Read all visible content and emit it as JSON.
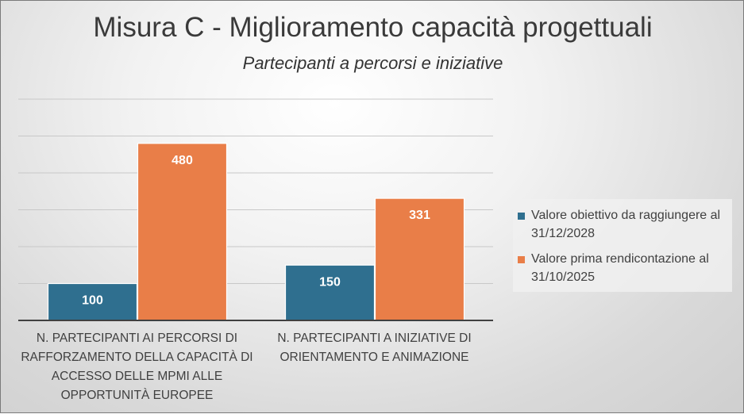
{
  "chart_data": {
    "type": "bar",
    "title": "Misura C - Miglioramento capacità progettuali",
    "subtitle": "Partecipanti a percorsi e iniziative",
    "categories": [
      [
        "N. PARTECIPANTI AI PERCORSI DI",
        "RAFFORZAMENTO DELLA CAPACITÀ DI",
        "ACCESSO DELLE MPMI ALLE",
        "OPPORTUNITÀ EUROPEE"
      ],
      [
        "N. PARTECIPANTI A INIZIATIVE DI",
        "ORIENTAMENTO E ANIMAZIONE"
      ]
    ],
    "series": [
      {
        "name": "Valore obiettivo da raggiungere al 31/12/2028",
        "legend_lines": [
          "Valore obiettivo da raggiungere al",
          "31/12/2028"
        ],
        "color": "#2f6f8f",
        "values": [
          100,
          150
        ]
      },
      {
        "name": "Valore prima rendicontazione al 31/10/2025",
        "legend_lines": [
          "Valore prima rendicontazione al",
          "31/10/2025"
        ],
        "color": "#e97e48",
        "values": [
          480,
          331
        ]
      }
    ],
    "ylim": [
      0,
      600
    ],
    "gridlines": [
      0,
      100,
      200,
      300,
      400,
      500,
      600
    ],
    "grid": true,
    "legend": "right",
    "xlabel": "",
    "ylabel": ""
  }
}
